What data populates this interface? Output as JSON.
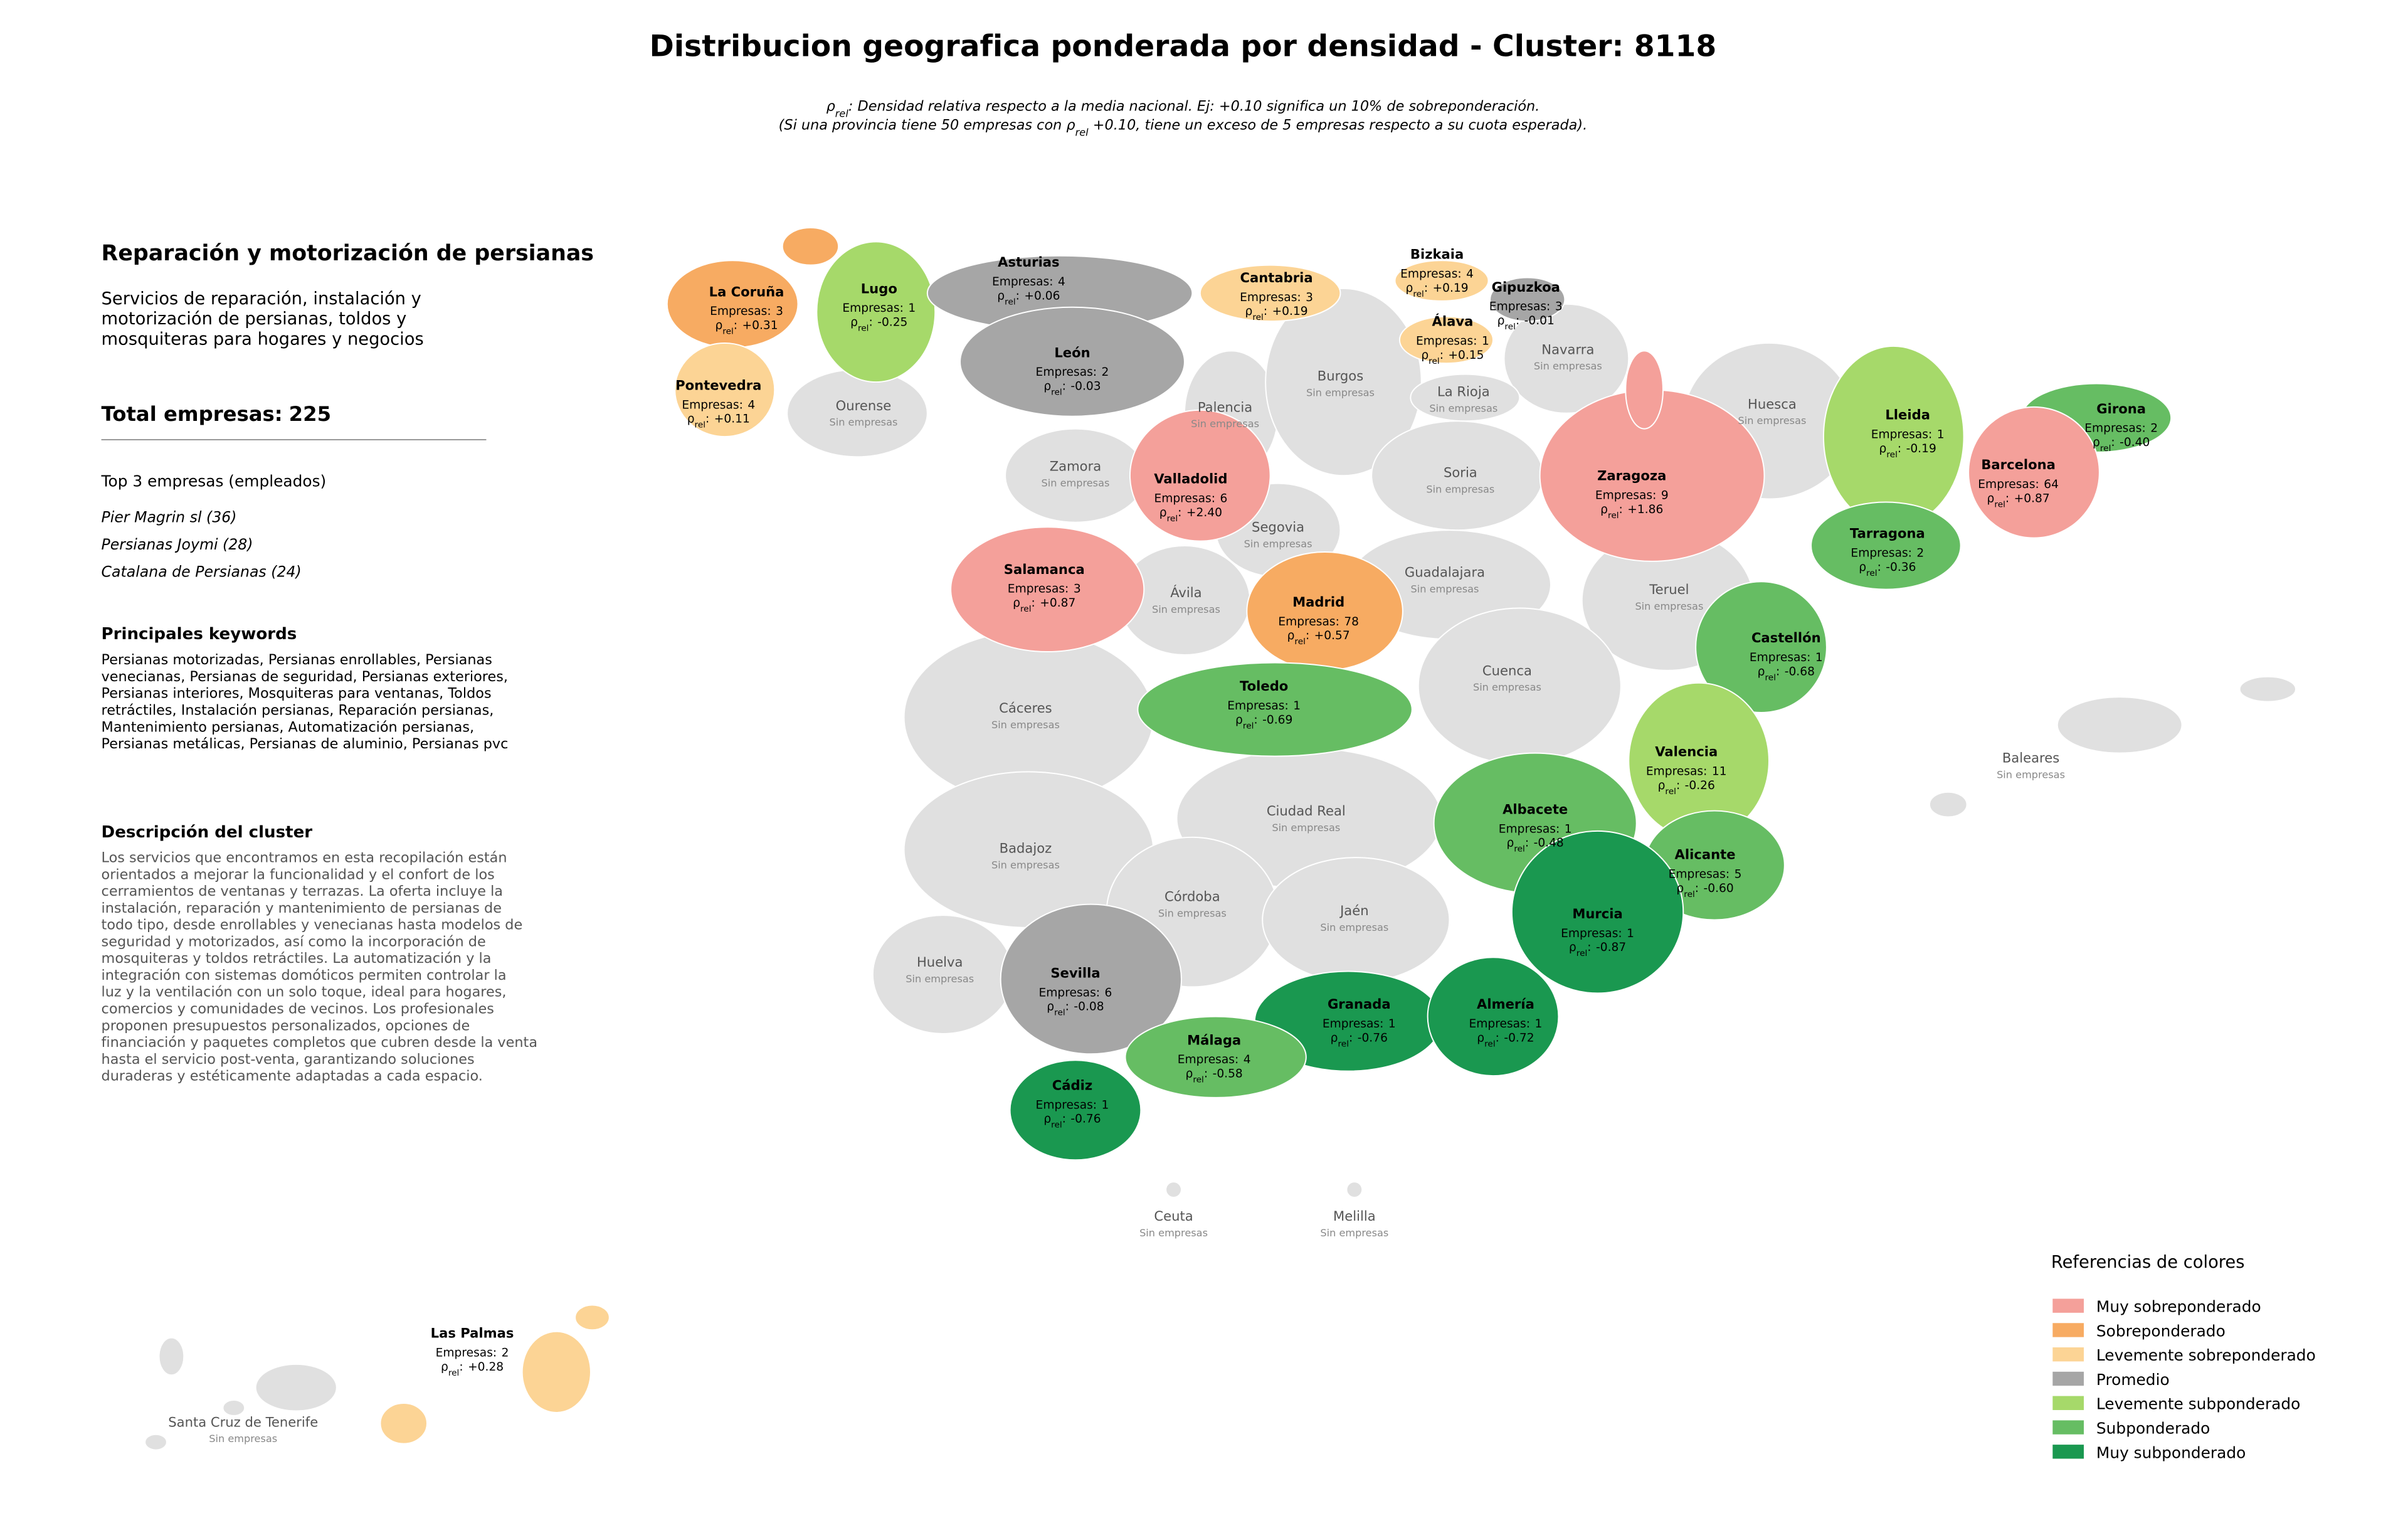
{
  "title": "Distribucion geografica ponderada por densidad - Cluster: 8118",
  "note": {
    "symbol": "ρ",
    "subscript": "rel",
    "line1_rest": ": Densidad relativa respecto a la media nacional. Ej: +0.10 significa un 10% de sobreponderación.",
    "line2_before": "(Si una provincia tiene 50 empresas con ",
    "line2_after": " +0.10, tiene un exceso de 5 empresas respecto a su cuota esperada)."
  },
  "panel": {
    "heading": "Reparación y motorización de persianas",
    "description_lines": [
      "Servicios de reparación, instalación y",
      "motorización de persianas, toldos y",
      "mosquiteras para hogares y negocios"
    ],
    "total_label": "Total empresas:",
    "total": 225,
    "top_title": "Top 3 empresas (empleados)",
    "top_companies": [
      "Pier Magrin sl (36)",
      "Persianas Joymi (28)",
      "Catalana de Persianas (24)"
    ],
    "keywords_title": "Principales keywords",
    "keywords_lines": [
      "Persianas motorizadas, Persianas enrollables, Persianas",
      "venecianas, Persianas de seguridad, Persianas exteriores,",
      "Persianas interiores, Mosquiteras para ventanas, Toldos",
      "retráctiles, Instalación persianas, Reparación persianas,",
      "Mantenimiento persianas, Automatización persianas,",
      "Persianas metálicas, Persianas de aluminio, Persianas pvc"
    ],
    "cluster_title": "Descripción del cluster",
    "cluster_lines": [
      "Los servicios que encontramos en esta recopilación están",
      "orientados a mejorar la funcionalidad y el confort de los",
      "cerramientos de ventanas y terrazas. La oferta incluye la",
      "instalación, reparación y mantenimiento de persianas de",
      "todo tipo, desde enrollables y venecianas hasta modelos de",
      "seguridad y motorizados, así como la incorporación de",
      "mosquiteras y toldos retráctiles. La automatización y la",
      "integración con sistemas domóticos permiten controlar la",
      "luz y la ventilación con un solo toque, ideal para hogares,",
      "comercios y comunidades de vecinos. Los profesionales",
      "proponen presupuestos personalizados, opciones de",
      "financiación y paquetes completos que cubren desde la venta",
      "hasta el servicio post-venta, garantizando soluciones",
      "duraderas y estéticamente adaptadas a cada espacio."
    ]
  },
  "map": {
    "type": "choropleth",
    "count_prefix": "Empresas:",
    "rho_symbol": "ρ",
    "rho_subscript": "rel",
    "rho_separator": ":",
    "empty_label": "Sin empresas",
    "empty_color": "#e0e0e0",
    "legend_title": "Referencias de colores",
    "categories": [
      {
        "name": "Muy sobreponderado",
        "color": "#f4a09a"
      },
      {
        "name": "Sobreponderado",
        "color": "#f7ab62"
      },
      {
        "name": "Levemente sobreponderado",
        "color": "#fcd495"
      },
      {
        "name": "Promedio",
        "color": "#a6a6a6"
      },
      {
        "name": "Levemente subponderado",
        "color": "#a6d96a"
      },
      {
        "name": "Subponderado",
        "color": "#66bd63"
      },
      {
        "name": "Muy subponderado",
        "color": "#1a9850"
      }
    ],
    "provinces": [
      {
        "name": "La Coruña",
        "empresas": 3,
        "rho": 0.31,
        "rho_label": "+0.31",
        "category": 1
      },
      {
        "name": "Lugo",
        "empresas": 1,
        "rho": -0.25,
        "category": 4
      },
      {
        "name": "Asturias",
        "empresas": 4,
        "rho": 0.06,
        "rho_label": "+0.06",
        "category": 3
      },
      {
        "name": "Cantabria",
        "empresas": 3,
        "rho": 0.19,
        "rho_label": "+0.19",
        "category": 2
      },
      {
        "name": "Bizkaia",
        "empresas": 4,
        "rho": 0.19,
        "rho_label": "+0.19",
        "category": 2
      },
      {
        "name": "Gipuzkoa",
        "empresas": 3,
        "rho": -0.01,
        "category": 3
      },
      {
        "name": "Álava",
        "empresas": 1,
        "rho": 0.15,
        "rho_label": "+0.15",
        "category": 2
      },
      {
        "name": "Pontevedra",
        "empresas": 4,
        "rho": 0.11,
        "rho_label": "+0.11",
        "category": 2
      },
      {
        "name": "León",
        "empresas": 2,
        "rho": -0.03,
        "category": 3
      },
      {
        "name": "Valladolid",
        "empresas": 6,
        "rho": 2.4,
        "rho_label": "+2.40",
        "category": 0
      },
      {
        "name": "Zaragoza",
        "empresas": 9,
        "rho": 1.86,
        "rho_label": "+1.86",
        "category": 0
      },
      {
        "name": "Lleida",
        "empresas": 1,
        "rho": -0.19,
        "category": 4
      },
      {
        "name": "Girona",
        "empresas": 2,
        "rho": -0.4,
        "rho_label": "-0.40",
        "category": 5
      },
      {
        "name": "Barcelona",
        "empresas": 64,
        "rho": 0.87,
        "rho_label": "+0.87",
        "category": 0
      },
      {
        "name": "Tarragona",
        "empresas": 2,
        "rho": -0.36,
        "category": 5
      },
      {
        "name": "Salamanca",
        "empresas": 3,
        "rho": 0.87,
        "rho_label": "+0.87",
        "category": 0
      },
      {
        "name": "Madrid",
        "empresas": 78,
        "rho": 0.57,
        "rho_label": "+0.57",
        "category": 1
      },
      {
        "name": "Toledo",
        "empresas": 1,
        "rho": -0.69,
        "category": 5
      },
      {
        "name": "Castellón",
        "empresas": 1,
        "rho": -0.68,
        "category": 5
      },
      {
        "name": "Valencia",
        "empresas": 11,
        "rho": -0.26,
        "category": 4
      },
      {
        "name": "Albacete",
        "empresas": 1,
        "rho": -0.48,
        "category": 5
      },
      {
        "name": "Alicante",
        "empresas": 5,
        "rho": -0.6,
        "rho_label": "-0.60",
        "category": 5
      },
      {
        "name": "Murcia",
        "empresas": 1,
        "rho": -0.87,
        "category": 6
      },
      {
        "name": "Granada",
        "empresas": 1,
        "rho": -0.76,
        "category": 6
      },
      {
        "name": "Almería",
        "empresas": 1,
        "rho": -0.72,
        "category": 6
      },
      {
        "name": "Sevilla",
        "empresas": 6,
        "rho": -0.08,
        "category": 3
      },
      {
        "name": "Málaga",
        "empresas": 4,
        "rho": -0.58,
        "category": 5
      },
      {
        "name": "Cádiz",
        "empresas": 1,
        "rho": -0.76,
        "category": 6
      },
      {
        "name": "Las Palmas",
        "empresas": 2,
        "rho": 0.28,
        "rho_label": "+0.28",
        "category": 2
      },
      {
        "name": "Ourense"
      },
      {
        "name": "Palencia"
      },
      {
        "name": "Burgos"
      },
      {
        "name": "Navarra"
      },
      {
        "name": "La Rioja"
      },
      {
        "name": "Huesca"
      },
      {
        "name": "Zamora"
      },
      {
        "name": "Soria"
      },
      {
        "name": "Segovia"
      },
      {
        "name": "Ávila"
      },
      {
        "name": "Guadalajara"
      },
      {
        "name": "Teruel"
      },
      {
        "name": "Cáceres"
      },
      {
        "name": "Cuenca"
      },
      {
        "name": "Baleares"
      },
      {
        "name": "Ciudad Real"
      },
      {
        "name": "Badajoz"
      },
      {
        "name": "Córdoba"
      },
      {
        "name": "Jaén"
      },
      {
        "name": "Huelva"
      },
      {
        "name": "Ceuta"
      },
      {
        "name": "Melilla"
      },
      {
        "name": "Santa Cruz de Tenerife"
      }
    ]
  }
}
